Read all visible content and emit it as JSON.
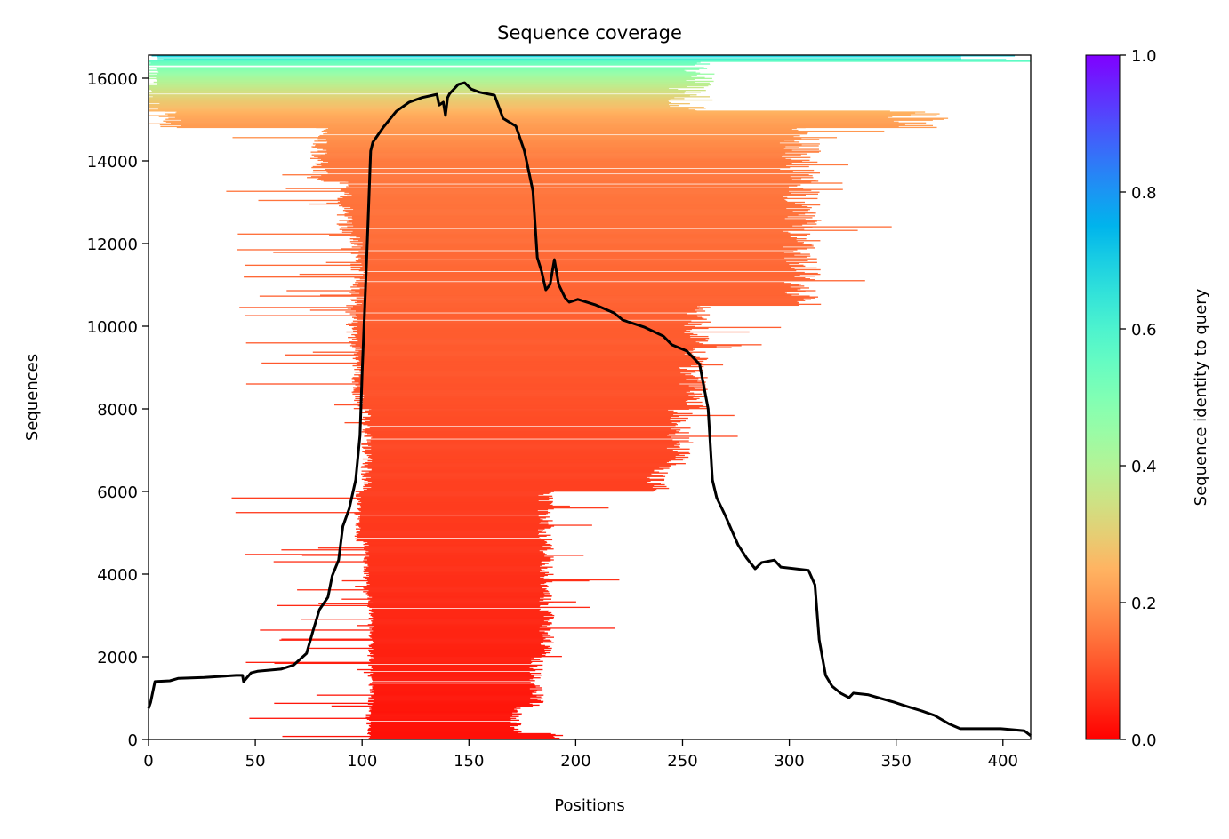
{
  "chart_data": {
    "type": "heatmap",
    "title": "Sequence coverage",
    "xlabel": "Positions",
    "ylabel": "Sequences",
    "xlim": [
      0,
      413
    ],
    "ylim": [
      0,
      16559
    ],
    "x_ticks": [
      "0",
      "50",
      "100",
      "150",
      "200",
      "250",
      "300",
      "350",
      "400"
    ],
    "y_ticks": [
      "0",
      "2000",
      "4000",
      "6000",
      "8000",
      "10000",
      "12000",
      "14000",
      "16000"
    ],
    "grid": false,
    "colorbar": {
      "label": "Sequence identity to query",
      "colormap": "rainbow_r",
      "range": [
        0,
        1
      ],
      "ticks": [
        "0.0",
        "0.2",
        "0.4",
        "0.6",
        "0.8",
        "1.0"
      ]
    },
    "coverage_line_color": "#000000",
    "coverage_line": [
      [
        0,
        750
      ],
      [
        1,
        900
      ],
      [
        3,
        1400
      ],
      [
        10,
        1420
      ],
      [
        14,
        1480
      ],
      [
        26,
        1500
      ],
      [
        41,
        1550
      ],
      [
        44,
        1550
      ],
      [
        44.5,
        1400
      ],
      [
        48,
        1610
      ],
      [
        51,
        1650
      ],
      [
        62,
        1700
      ],
      [
        68,
        1800
      ],
      [
        74,
        2080
      ],
      [
        77,
        2620
      ],
      [
        80,
        3140
      ],
      [
        84,
        3440
      ],
      [
        86,
        3960
      ],
      [
        89,
        4340
      ],
      [
        91,
        5160
      ],
      [
        94,
        5590
      ],
      [
        97,
        6280
      ],
      [
        99,
        7350
      ],
      [
        100,
        8860
      ],
      [
        102,
        11440
      ],
      [
        104,
        14240
      ],
      [
        105,
        14450
      ],
      [
        110,
        14820
      ],
      [
        116,
        15200
      ],
      [
        122,
        15420
      ],
      [
        128,
        15530
      ],
      [
        135,
        15610
      ],
      [
        136,
        15350
      ],
      [
        138,
        15420
      ],
      [
        139,
        15100
      ],
      [
        140,
        15530
      ],
      [
        141,
        15630
      ],
      [
        145,
        15850
      ],
      [
        148,
        15890
      ],
      [
        151,
        15740
      ],
      [
        155,
        15660
      ],
      [
        162,
        15590
      ],
      [
        166,
        15030
      ],
      [
        172,
        14840
      ],
      [
        176,
        14240
      ],
      [
        180,
        13270
      ],
      [
        182,
        11660
      ],
      [
        184,
        11330
      ],
      [
        186,
        10880
      ],
      [
        188,
        11010
      ],
      [
        190,
        11610
      ],
      [
        192,
        11010
      ],
      [
        195,
        10690
      ],
      [
        197,
        10580
      ],
      [
        201,
        10650
      ],
      [
        209,
        10520
      ],
      [
        218,
        10320
      ],
      [
        222,
        10150
      ],
      [
        232,
        9980
      ],
      [
        241,
        9760
      ],
      [
        245,
        9550
      ],
      [
        252,
        9400
      ],
      [
        258,
        9080
      ],
      [
        262,
        8000
      ],
      [
        264,
        6280
      ],
      [
        266,
        5850
      ],
      [
        270,
        5420
      ],
      [
        276,
        4710
      ],
      [
        280,
        4390
      ],
      [
        284,
        4130
      ],
      [
        287,
        4280
      ],
      [
        293,
        4340
      ],
      [
        296,
        4170
      ],
      [
        309,
        4090
      ],
      [
        312,
        3740
      ],
      [
        314,
        2410
      ],
      [
        317,
        1550
      ],
      [
        320,
        1290
      ],
      [
        324,
        1120
      ],
      [
        328,
        1010
      ],
      [
        330,
        1120
      ],
      [
        337,
        1080
      ],
      [
        343,
        990
      ],
      [
        349,
        900
      ],
      [
        355,
        800
      ],
      [
        362,
        690
      ],
      [
        368,
        580
      ],
      [
        375,
        370
      ],
      [
        380,
        260
      ],
      [
        399,
        260
      ],
      [
        410,
        210
      ],
      [
        413,
        90
      ]
    ],
    "coverage_bands": [
      {
        "sequences": [
          0,
          150
        ],
        "start": 103,
        "end": 195
      },
      {
        "sequences": [
          150,
          800
        ],
        "start": 103,
        "end": 175
      },
      {
        "sequences": [
          800,
          2000
        ],
        "start": 104,
        "end": 185
      },
      {
        "sequences": [
          2000,
          3500
        ],
        "start": 104,
        "end": 190
      },
      {
        "sequences": [
          3500,
          4800
        ],
        "start": 102,
        "end": 190
      },
      {
        "sequences": [
          4800,
          6000
        ],
        "start": 98,
        "end": 190
      },
      {
        "sequences": [
          6000,
          6600
        ],
        "start": 102,
        "end": 245
      },
      {
        "sequences": [
          6600,
          8000
        ],
        "start": 102,
        "end": 255
      },
      {
        "sequences": [
          8000,
          9500
        ],
        "start": 98,
        "end": 262
      },
      {
        "sequences": [
          9500,
          10500
        ],
        "start": 95,
        "end": 265
      },
      {
        "sequences": [
          10500,
          12200
        ],
        "start": 98,
        "end": 315
      },
      {
        "sequences": [
          12200,
          13500
        ],
        "start": 92,
        "end": 315
      },
      {
        "sequences": [
          13500,
          14800
        ],
        "start": 80,
        "end": 315
      },
      {
        "sequences": [
          14800,
          15200
        ],
        "start": 10,
        "end": 375
      },
      {
        "sequences": [
          15200,
          15500
        ],
        "start": 1,
        "end": 265
      },
      {
        "sequences": [
          15500,
          16400
        ],
        "start": 0,
        "end": 265
      },
      {
        "sequences": [
          16400,
          16559
        ],
        "start": 0,
        "end": 413
      }
    ],
    "identity_profile": [
      [
        0,
        0.02
      ],
      [
        4000,
        0.06
      ],
      [
        8000,
        0.1
      ],
      [
        12000,
        0.14
      ],
      [
        14000,
        0.16
      ],
      [
        15000,
        0.22
      ],
      [
        15500,
        0.3
      ],
      [
        16000,
        0.42
      ],
      [
        16400,
        0.55
      ],
      [
        16559,
        0.72
      ]
    ]
  }
}
